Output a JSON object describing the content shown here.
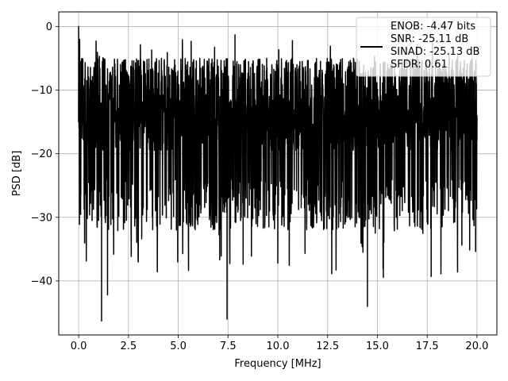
{
  "chart_data": {
    "type": "line",
    "title": "",
    "xlabel": "Frequency [MHz]",
    "ylabel": "PSD [dB]",
    "xlim": [
      -1.0,
      21.0
    ],
    "ylim": [
      -48.5,
      2.3
    ],
    "xticks": [
      0.0,
      2.5,
      5.0,
      7.5,
      10.0,
      12.5,
      15.0,
      17.5,
      20.0
    ],
    "xtick_labels": [
      "0.0",
      "2.5",
      "5.0",
      "7.5",
      "10.0",
      "12.5",
      "15.0",
      "17.5",
      "20.0"
    ],
    "yticks": [
      0,
      -10,
      -20,
      -30,
      -40
    ],
    "ytick_labels": [
      "0",
      "−10",
      "−20",
      "−30",
      "−40"
    ],
    "grid": true,
    "legend_position": "top-right",
    "legend_entries": [
      "ENOB: -4.47 bits\nSNR: -25.11 dB\nSINAD: -25.13 dB\nSFDR: 0.61"
    ],
    "series": [
      {
        "color": "#000000",
        "noise_like": true,
        "x_range": [
          0.0,
          20.0
        ],
        "approx_upper_envelope_db": -5,
        "approx_mean_db": -15,
        "approx_lower_envelope_db": -28,
        "points": [
          {
            "x": 0.0,
            "y": 0.0
          },
          {
            "x": 0.02,
            "y": -16.0
          },
          {
            "x": 0.05,
            "y": -2.0
          },
          {
            "x": 0.1,
            "y": -12.0
          },
          {
            "x": 1.15,
            "y": -46.3
          },
          {
            "x": 1.45,
            "y": -42.2
          },
          {
            "x": 7.45,
            "y": -46.0
          },
          {
            "x": 7.85,
            "y": -1.3
          },
          {
            "x": 14.5,
            "y": -44.0
          },
          {
            "x": 17.7,
            "y": -39.3
          },
          {
            "x": 20.0,
            "y": -14.0
          }
        ]
      }
    ]
  }
}
